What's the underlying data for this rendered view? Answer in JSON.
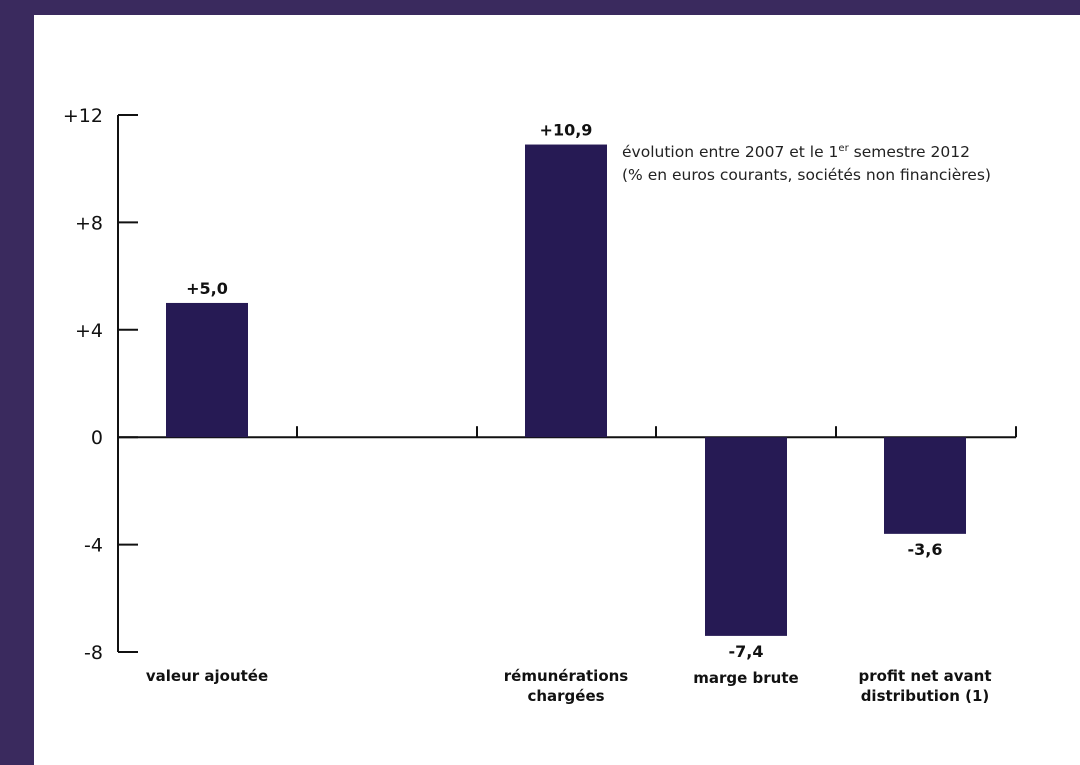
{
  "colors": {
    "frame": "#3a2a5e",
    "bar": "#261a54",
    "axis": "#111111",
    "text": "#111111"
  },
  "annotation": {
    "line1_before": "évolution entre 2007 et le 1",
    "line1_sup": "er",
    "line1_after": " semestre 2012",
    "line2": "(% en euros courants, sociétés non financières)"
  },
  "chart_data": {
    "type": "bar",
    "title": "",
    "xlabel": "",
    "ylabel": "",
    "ylim": [
      -8,
      12
    ],
    "yticks": [
      -8,
      -4,
      0,
      4,
      8,
      12
    ],
    "ytick_labels": [
      "-8",
      "-4",
      "0",
      "+4",
      "+8",
      "+12"
    ],
    "categories": [
      {
        "lines": [
          "valeur ajoutée"
        ],
        "value": 5.0,
        "label": "+5,0"
      },
      {
        "lines": [
          "rémunérations",
          "chargées"
        ],
        "value": 10.9,
        "label": "+10,9"
      },
      {
        "lines": [
          "marge brute"
        ],
        "value": -7.4,
        "label": "-7,4"
      },
      {
        "lines": [
          "profit net avant",
          "distribution (1)"
        ],
        "value": -3.6,
        "label": "-3,6"
      }
    ],
    "grid": false,
    "legend": "none"
  }
}
